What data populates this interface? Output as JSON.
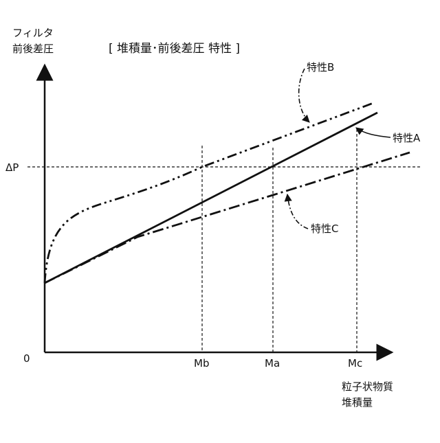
{
  "figure": {
    "title": "[ 堆積量･前後差圧 特性 ]",
    "y_axis_label_line1": "フィルタ",
    "y_axis_label_line2": "前後差圧",
    "x_axis_label_line1": "粒子状物質",
    "x_axis_label_line2": "堆積量",
    "origin_label": "0",
    "threshold_label": "ΔP",
    "tick_mb": "Mb",
    "tick_ma": "Ma",
    "tick_mc": "Mc",
    "label_a": "特性A",
    "label_b": "特性B",
    "label_c": "特性C"
  },
  "colors": {
    "ink": "#111111",
    "background": "#ffffff"
  }
}
